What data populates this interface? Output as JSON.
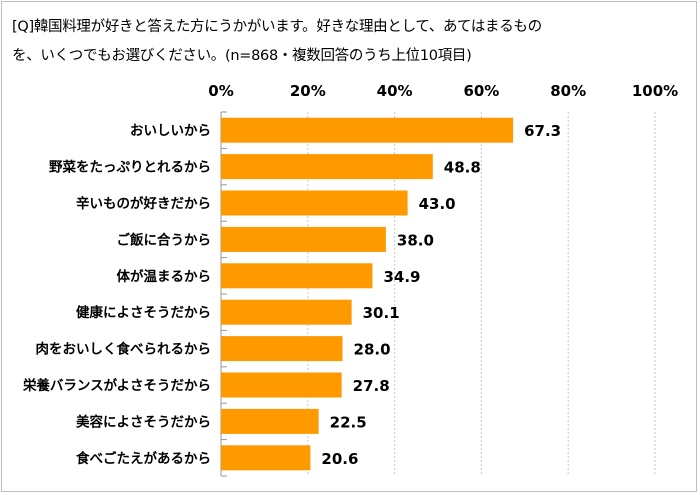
{
  "chart_data": {
    "type": "bar",
    "orientation": "horizontal",
    "title_lines": [
      "[Q]韓国料理が好きと答えた方にうかがいます。好きな理由として、あてはまるもの",
      "を、いくつでもお選びください。(n=868・複数回答のうち上位10項目)"
    ],
    "categories": [
      "おいしいから",
      "野菜をたっぷりとれるから",
      "辛いものが好きだから",
      "ご飯に合うから",
      "体が温まるから",
      "健康によさそうだから",
      "肉をおいしく食べられるから",
      "栄養バランスがよさそうだから",
      "美容によさそうだから",
      "食べごたえがあるから"
    ],
    "values": [
      67.3,
      48.8,
      43.0,
      38.0,
      34.9,
      30.1,
      28.0,
      27.8,
      22.5,
      20.6
    ],
    "data_labels": [
      "67.3",
      "48.8",
      "43.0",
      "38.0",
      "34.9",
      "30.1",
      "28.0",
      "27.8",
      "22.5",
      "20.6"
    ],
    "x_ticks": [
      "0%",
      "20%",
      "40%",
      "60%",
      "80%",
      "100%"
    ],
    "xlim": [
      0,
      100
    ],
    "x_axis_position": "top",
    "grid": true,
    "bar_color": "#FF9900",
    "grid_color": "#c8c8c8"
  }
}
